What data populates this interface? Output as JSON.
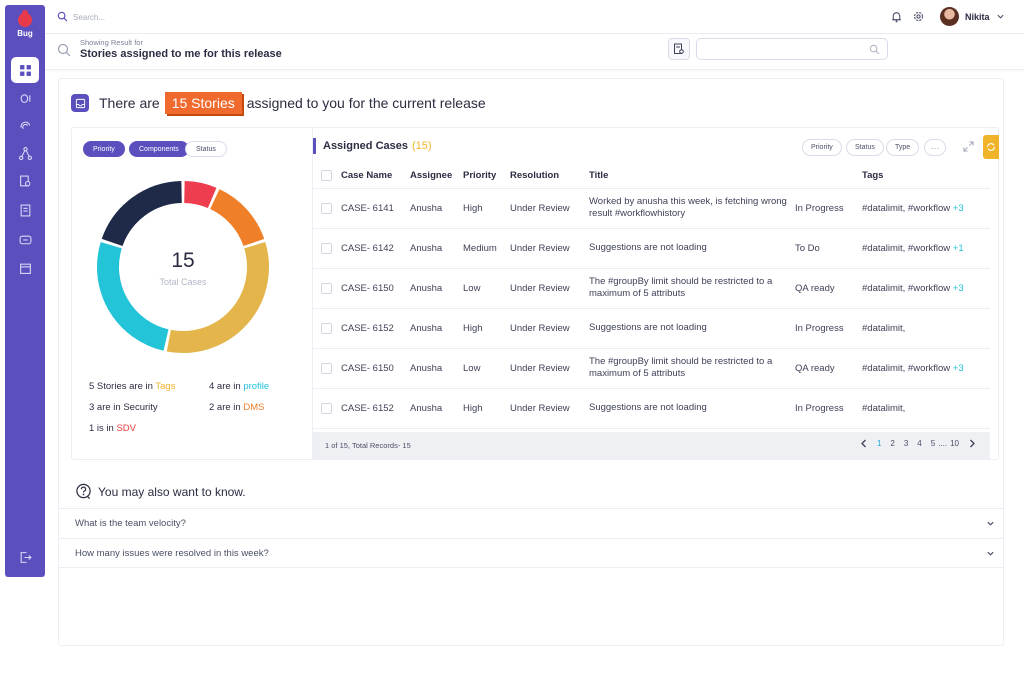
{
  "app": {
    "name": "Bug"
  },
  "topbar": {
    "search_placeholder": "Search...",
    "user_name": "Nikita"
  },
  "result": {
    "caption": "Showing Result for",
    "title": "Stories assigned to me for this release"
  },
  "headline": {
    "before": "There are",
    "highlight": "15 Stories",
    "after": "assigned to you for the current release"
  },
  "filters": [
    "Priority",
    "Components",
    "Status"
  ],
  "donut": {
    "total": "15",
    "label": "Total Cases",
    "segments": [
      {
        "name": "Tags",
        "value": 5,
        "color": "#e3b54a"
      },
      {
        "name": "profile",
        "value": 4,
        "color": "#23c4d8"
      },
      {
        "name": "Security",
        "value": 3,
        "color": "#1f2a48"
      },
      {
        "name": "DMS",
        "value": 2,
        "color": "#f07f2a"
      },
      {
        "name": "SDV",
        "value": 1,
        "color": "#ee3d4f"
      }
    ]
  },
  "stats": [
    {
      "prefix": "5 Stories are in",
      "label": "Tags",
      "color": "#f0b42a"
    },
    {
      "prefix": "4 are in",
      "label": "profile",
      "color": "#23c4d8"
    },
    {
      "prefix": "3 are in",
      "label": "Security",
      "color": "#2b2d42"
    },
    {
      "prefix": "2 are in",
      "label": "DMS",
      "color": "#f07f2a"
    },
    {
      "prefix": "1 is in",
      "label": "SDV",
      "color": "#ee3d3d"
    }
  ],
  "cases": {
    "title": "Assigned Cases",
    "count": "(15)",
    "pills": [
      "Priority",
      "Status",
      "Type"
    ],
    "more": "···",
    "columns": [
      "Case Name",
      "Assignee",
      "Priority",
      "Resolution",
      "Title",
      "",
      "Tags"
    ],
    "rows": [
      {
        "case": "CASE- 6141",
        "assignee": "Anusha",
        "priority": "High",
        "resolution": "Under Review",
        "title": "Worked by anusha this week, is fetching wrong result #workflowhistory",
        "status": "In Progress",
        "tags": "#datalimit, #workflow",
        "more": "+3"
      },
      {
        "case": "CASE- 6142",
        "assignee": "Anusha",
        "priority": "Medium",
        "resolution": "Under Review",
        "title": "Suggestions are not loading",
        "status": "To Do",
        "tags": "#datalimit, #workflow",
        "more": "+1"
      },
      {
        "case": "CASE- 6150",
        "assignee": "Anusha",
        "priority": "Low",
        "resolution": "Under Review",
        "title": "The #groupBy limit should be restricted to a maximum of 5 attributs",
        "status": "QA ready",
        "tags": "#datalimit, #workflow",
        "more": "+3"
      },
      {
        "case": "CASE- 6152",
        "assignee": "Anusha",
        "priority": "High",
        "resolution": "Under Review",
        "title": "Suggestions are not loading",
        "status": "In Progress",
        "tags": "#datalimit,",
        "more": ""
      },
      {
        "case": "CASE- 6150",
        "assignee": "Anusha",
        "priority": "Low",
        "resolution": "Under Review",
        "title": "The #groupBy limit should be restricted to a maximum of 5 attributs",
        "status": "QA ready",
        "tags": "#datalimit, #workflow",
        "more": "+3"
      },
      {
        "case": "CASE- 6152",
        "assignee": "Anusha",
        "priority": "High",
        "resolution": "Under Review",
        "title": "Suggestions are not loading",
        "status": "In Progress",
        "tags": "#datalimit,",
        "more": ""
      }
    ],
    "records": "1 of 15, Total Records- 15",
    "pages": [
      "1",
      "2",
      "3",
      "4",
      "5",
      "....",
      "10"
    ]
  },
  "faq": {
    "title": "You may also want to know.",
    "items": [
      "What is the team velocity?",
      "How many issues were resolved in this week?"
    ]
  },
  "icons": {
    "sidebar": [
      "dashboard-icon",
      "bug-list-icon",
      "fingerprint-icon",
      "network-icon",
      "search-doc-icon",
      "notes-icon",
      "chat-icon",
      "calendar-icon",
      "logout-icon"
    ]
  }
}
